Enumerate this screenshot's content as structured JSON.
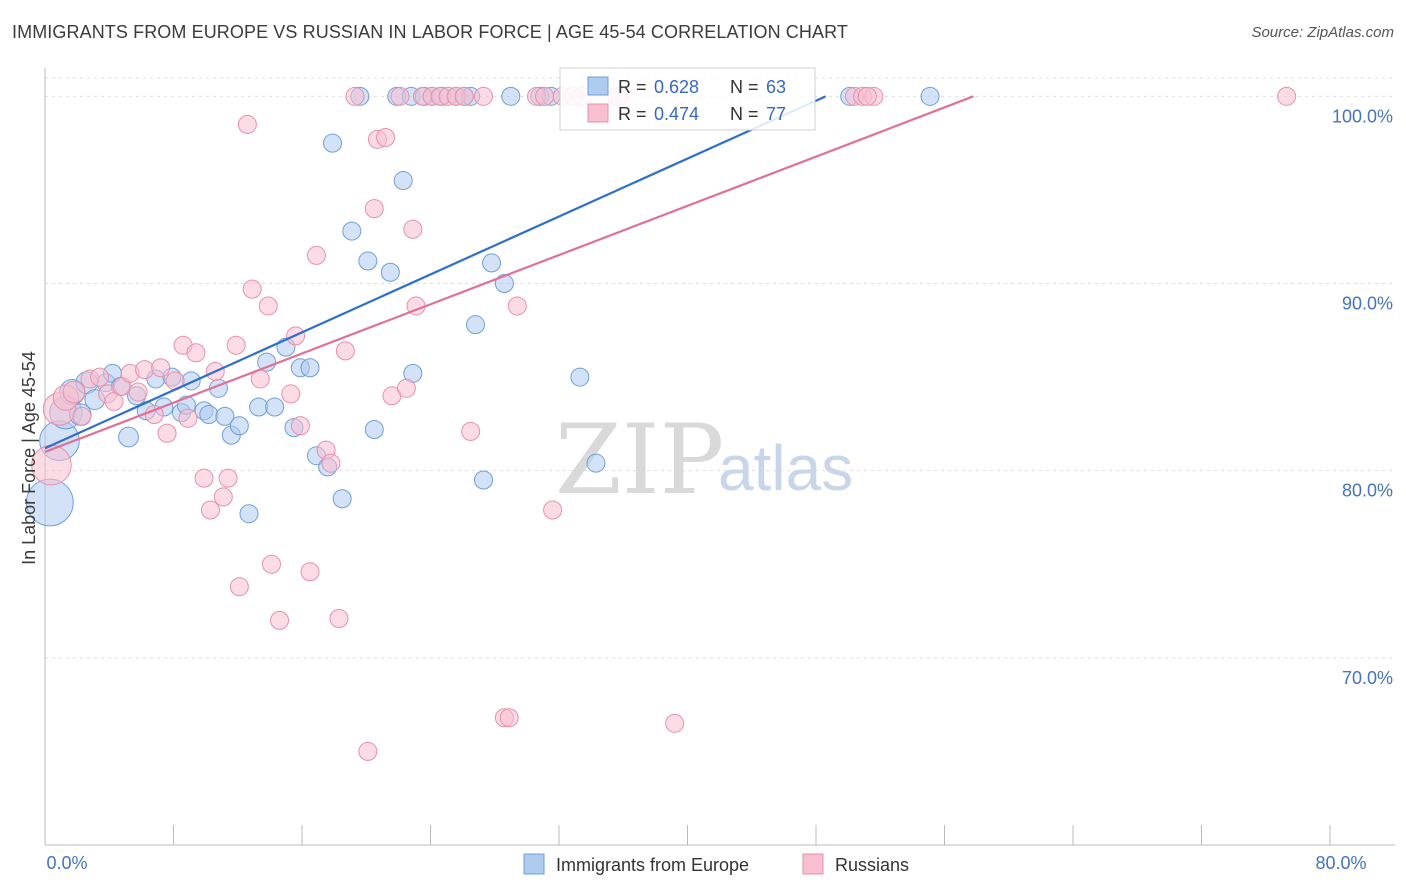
{
  "header": {
    "title": "IMMIGRANTS FROM EUROPE VS RUSSIAN IN LABOR FORCE | AGE 45-54 CORRELATION CHART",
    "source": "Source: ZipAtlas.com"
  },
  "watermark": {
    "zip": "ZIP",
    "atlas": "atlas"
  },
  "colors": {
    "blue_fill": "#aecbf0",
    "blue_stroke": "#6f9fd8",
    "blue_line": "#2f6fcc",
    "pink_fill": "#f7bfd0",
    "pink_stroke": "#e98fab",
    "pink_line": "#e0709a",
    "grid": "#dddddd",
    "axis_text": "#4472c4"
  },
  "chart_data": {
    "type": "scatter",
    "title": "IMMIGRANTS FROM EUROPE VS RUSSIAN IN LABOR FORCE | AGE 45-54 CORRELATION CHART",
    "xlabel": "",
    "ylabel": "In Labor Force | Age 45-54",
    "xlim": [
      0,
      80
    ],
    "ylim": [
      60,
      101.3
    ],
    "x_tick_labels": [
      {
        "value": 0,
        "label": "0.0%"
      },
      {
        "value": 80,
        "label": "80.0%"
      }
    ],
    "y_tick_labels": [
      {
        "value": 70,
        "label": "70.0%"
      },
      {
        "value": 80,
        "label": "80.0%"
      },
      {
        "value": 90,
        "label": "90.0%"
      },
      {
        "value": 100,
        "label": "100.0%"
      }
    ],
    "legend_position": "top-center",
    "legend": [
      {
        "series": "Immigrants from Europe",
        "r_label": "R =",
        "r": "0.628",
        "n_label": "N =",
        "n": "63"
      },
      {
        "series": "Russians",
        "r_label": "R =",
        "r": "0.474",
        "n_label": "N =",
        "n": "77"
      }
    ],
    "bottom_legend": [
      "Immigrants from Europe",
      "Russians"
    ],
    "series": [
      {
        "name": "Immigrants from Europe",
        "color": "blue",
        "trendline": {
          "x": [
            0,
            48.6
          ],
          "y": [
            81.2,
            100.0
          ]
        },
        "points": [
          [
            0.3,
            78.3,
            26
          ],
          [
            0.9,
            81.6,
            22
          ],
          [
            1.3,
            83.1,
            18
          ],
          [
            1.7,
            84.2,
            14
          ],
          [
            2.2,
            83.0,
            12
          ],
          [
            2.6,
            84.7,
            12
          ],
          [
            3.1,
            83.8,
            11
          ],
          [
            3.8,
            84.7,
            10
          ],
          [
            4.2,
            85.2,
            10
          ],
          [
            4.7,
            84.5,
            10
          ],
          [
            5.2,
            81.8,
            11
          ],
          [
            5.7,
            84.0,
            10
          ],
          [
            6.3,
            83.2,
            10
          ],
          [
            6.9,
            84.9,
            10
          ],
          [
            7.4,
            83.4,
            10
          ],
          [
            7.9,
            85.0,
            10
          ],
          [
            8.5,
            83.1,
            10
          ],
          [
            8.8,
            83.5,
            10
          ],
          [
            9.1,
            84.8,
            10
          ],
          [
            9.9,
            83.2,
            10
          ],
          [
            10.2,
            83.0,
            10
          ],
          [
            10.8,
            84.4,
            10
          ],
          [
            11.2,
            82.9,
            10
          ],
          [
            11.6,
            81.9,
            10
          ],
          [
            12.1,
            82.4,
            10
          ],
          [
            12.7,
            77.7,
            10
          ],
          [
            13.3,
            83.4,
            10
          ],
          [
            13.8,
            85.8,
            10
          ],
          [
            14.3,
            83.4,
            10
          ],
          [
            15.0,
            86.6,
            10
          ],
          [
            15.5,
            82.3,
            10
          ],
          [
            15.9,
            85.5,
            10
          ],
          [
            16.5,
            85.5,
            10
          ],
          [
            16.9,
            80.8,
            10
          ],
          [
            17.6,
            80.2,
            10
          ],
          [
            17.9,
            97.5,
            10
          ],
          [
            18.5,
            78.5,
            10
          ],
          [
            19.1,
            92.8,
            10
          ],
          [
            19.6,
            100.0,
            10
          ],
          [
            20.1,
            91.2,
            10
          ],
          [
            20.5,
            82.2,
            10
          ],
          [
            21.5,
            90.6,
            10
          ],
          [
            21.9,
            100.0,
            10
          ],
          [
            22.3,
            95.5,
            10
          ],
          [
            22.8,
            100.0,
            10
          ],
          [
            22.9,
            85.2,
            10
          ],
          [
            23.6,
            100.0,
            10
          ],
          [
            24.1,
            100.0,
            10
          ],
          [
            24.7,
            100.0,
            10
          ],
          [
            25.6,
            100.0,
            10
          ],
          [
            26.1,
            100.0,
            10
          ],
          [
            26.5,
            100.0,
            10
          ],
          [
            26.8,
            87.8,
            10
          ],
          [
            27.3,
            79.5,
            10
          ],
          [
            27.8,
            91.1,
            10
          ],
          [
            28.6,
            90.0,
            10
          ],
          [
            29.0,
            100.0,
            10
          ],
          [
            30.8,
            100.0,
            10
          ],
          [
            31.5,
            100.0,
            10
          ],
          [
            33.3,
            85.0,
            10
          ],
          [
            34.3,
            80.4,
            10
          ],
          [
            50.1,
            100.0,
            10
          ],
          [
            55.1,
            100.0,
            10
          ]
        ]
      },
      {
        "name": "Russians",
        "color": "pink",
        "trendline": {
          "x": [
            0,
            57.8
          ],
          "y": [
            81.0,
            100.0
          ]
        },
        "points": [
          [
            0.4,
            80.3,
            22
          ],
          [
            0.9,
            83.3,
            18
          ],
          [
            1.3,
            83.9,
            14
          ],
          [
            1.8,
            84.2,
            12
          ],
          [
            2.3,
            82.9,
            10
          ],
          [
            2.8,
            84.9,
            10
          ],
          [
            3.4,
            85.0,
            10
          ],
          [
            3.9,
            84.1,
            10
          ],
          [
            4.3,
            83.7,
            10
          ],
          [
            4.8,
            84.5,
            10
          ],
          [
            5.3,
            85.2,
            10
          ],
          [
            5.8,
            84.2,
            10
          ],
          [
            6.2,
            85.4,
            10
          ],
          [
            6.8,
            83.0,
            10
          ],
          [
            7.2,
            85.5,
            10
          ],
          [
            7.6,
            82.0,
            10
          ],
          [
            8.1,
            84.8,
            10
          ],
          [
            8.6,
            86.7,
            10
          ],
          [
            8.9,
            82.8,
            10
          ],
          [
            9.4,
            86.3,
            10
          ],
          [
            9.9,
            79.6,
            10
          ],
          [
            10.3,
            77.9,
            10
          ],
          [
            10.6,
            85.3,
            10
          ],
          [
            11.1,
            78.6,
            10
          ],
          [
            11.4,
            79.6,
            10
          ],
          [
            11.9,
            86.7,
            10
          ],
          [
            12.1,
            73.8,
            10
          ],
          [
            12.6,
            98.5,
            10
          ],
          [
            12.9,
            89.7,
            10
          ],
          [
            13.4,
            84.9,
            10
          ],
          [
            13.9,
            88.8,
            10
          ],
          [
            14.1,
            75.0,
            10
          ],
          [
            14.6,
            72.0,
            10
          ],
          [
            15.3,
            84.1,
            10
          ],
          [
            15.6,
            87.2,
            10
          ],
          [
            15.9,
            82.4,
            10
          ],
          [
            16.5,
            74.6,
            10
          ],
          [
            16.9,
            91.5,
            10
          ],
          [
            17.5,
            81.1,
            10
          ],
          [
            17.8,
            80.4,
            10
          ],
          [
            18.3,
            72.1,
            10
          ],
          [
            18.7,
            86.4,
            10
          ],
          [
            19.3,
            100.0,
            10
          ],
          [
            20.1,
            65.0,
            10
          ],
          [
            20.5,
            94.0,
            10
          ],
          [
            20.7,
            97.7,
            10
          ],
          [
            21.2,
            97.8,
            10
          ],
          [
            21.6,
            84.0,
            10
          ],
          [
            22.1,
            100.0,
            10
          ],
          [
            22.5,
            84.4,
            10
          ],
          [
            22.9,
            92.9,
            10
          ],
          [
            23.1,
            88.8,
            10
          ],
          [
            23.5,
            100.0,
            10
          ],
          [
            24.1,
            100.0,
            10
          ],
          [
            24.6,
            100.0,
            10
          ],
          [
            25.1,
            100.0,
            10
          ],
          [
            25.6,
            100.0,
            10
          ],
          [
            26.1,
            100.0,
            10
          ],
          [
            26.5,
            82.1,
            10
          ],
          [
            27.3,
            100.0,
            10
          ],
          [
            28.6,
            66.8,
            10
          ],
          [
            28.9,
            66.8,
            10
          ],
          [
            29.4,
            88.8,
            10
          ],
          [
            30.6,
            100.0,
            10
          ],
          [
            31.1,
            100.0,
            10
          ],
          [
            31.6,
            77.9,
            10
          ],
          [
            32.2,
            100.0,
            10
          ],
          [
            32.9,
            100.0,
            10
          ],
          [
            33.4,
            100.0,
            10
          ],
          [
            35.6,
            100.0,
            10
          ],
          [
            35.8,
            100.0,
            10
          ],
          [
            39.2,
            66.5,
            10
          ],
          [
            50.4,
            100.0,
            10
          ],
          [
            50.9,
            100.0,
            10
          ],
          [
            51.6,
            100.0,
            10
          ],
          [
            77.3,
            100.0,
            10
          ],
          [
            51.2,
            100.0,
            10
          ]
        ]
      }
    ]
  }
}
